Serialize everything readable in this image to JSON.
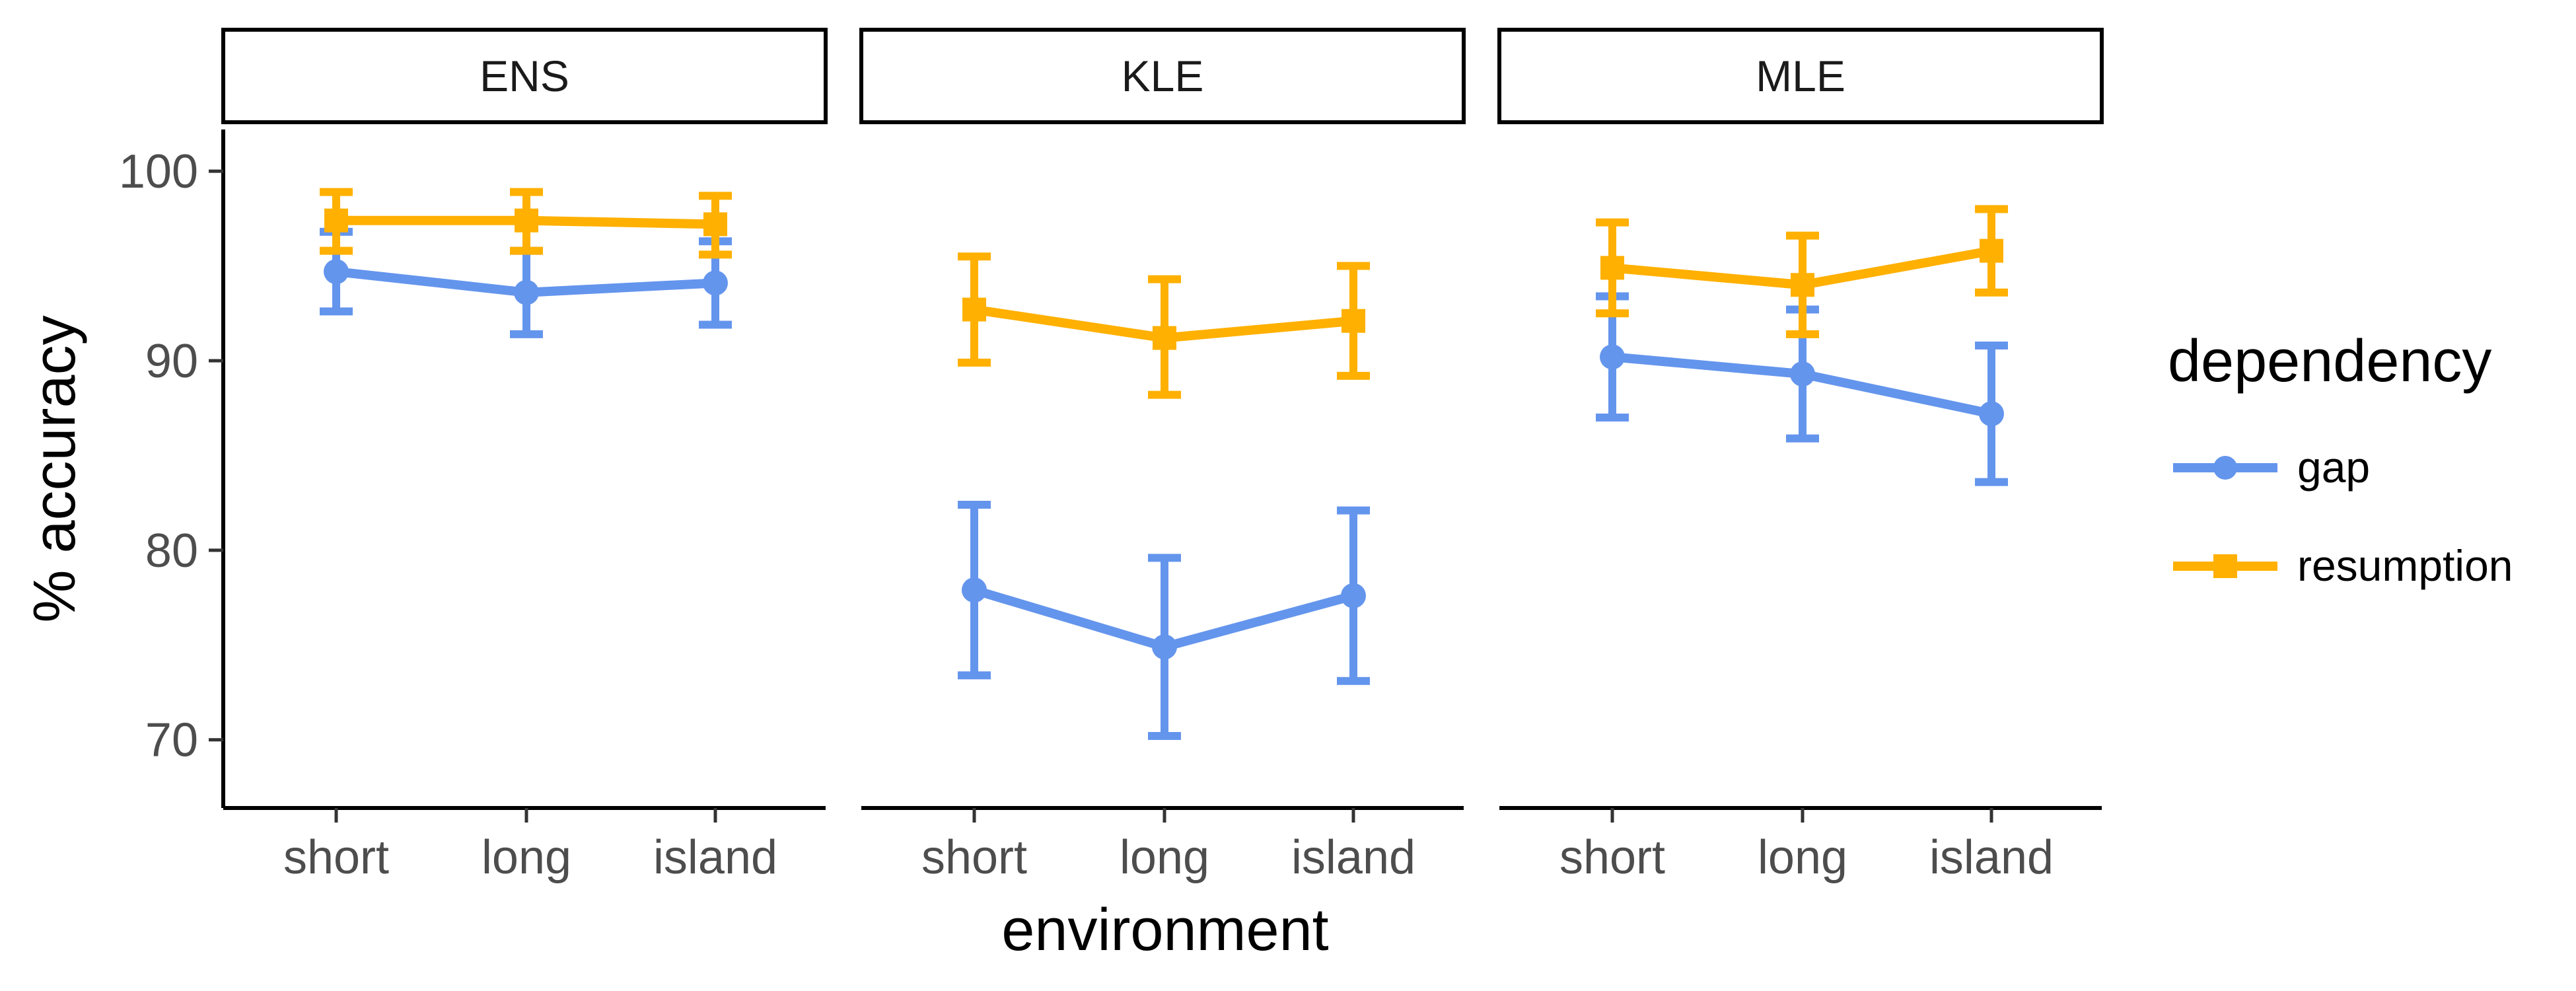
{
  "chart_data": {
    "type": "line",
    "xlabel": "environment",
    "ylabel": "% accuracy",
    "categories": [
      "short",
      "long",
      "island"
    ],
    "ylim": [
      66.4,
      102.2
    ],
    "yticks": [
      70,
      80,
      90,
      100
    ],
    "grid": false,
    "legend": {
      "title": "dependency",
      "position": "right",
      "entries": [
        "gap",
        "resumption"
      ]
    },
    "panels": [
      {
        "name": "ENS",
        "series": [
          {
            "name": "gap",
            "color": "#6495ED",
            "marker": "circle",
            "values": [
              94.7,
              93.6,
              94.1
            ],
            "lower": [
              92.6,
              91.4,
              91.9
            ],
            "upper": [
              96.8,
              95.8,
              96.3
            ]
          },
          {
            "name": "resumption",
            "color": "#FFB000",
            "marker": "square",
            "values": [
              97.4,
              97.4,
              97.2
            ],
            "lower": [
              95.8,
              95.8,
              95.6
            ],
            "upper": [
              98.9,
              98.9,
              98.7
            ]
          }
        ]
      },
      {
        "name": "KLE",
        "series": [
          {
            "name": "gap",
            "color": "#6495ED",
            "marker": "circle",
            "values": [
              77.9,
              74.9,
              77.6
            ],
            "lower": [
              73.4,
              70.2,
              73.1
            ],
            "upper": [
              82.4,
              79.6,
              82.1
            ]
          },
          {
            "name": "resumption",
            "color": "#FFB000",
            "marker": "square",
            "values": [
              92.7,
              91.2,
              92.1
            ],
            "lower": [
              89.9,
              88.2,
              89.2
            ],
            "upper": [
              95.5,
              94.3,
              95.0
            ]
          }
        ]
      },
      {
        "name": "MLE",
        "series": [
          {
            "name": "gap",
            "color": "#6495ED",
            "marker": "circle",
            "values": [
              90.2,
              89.3,
              87.2
            ],
            "lower": [
              87.0,
              85.9,
              83.6
            ],
            "upper": [
              93.4,
              92.7,
              90.8
            ]
          },
          {
            "name": "resumption",
            "color": "#FFB000",
            "marker": "square",
            "values": [
              94.9,
              94.0,
              95.8
            ],
            "lower": [
              92.5,
              91.4,
              93.6
            ],
            "upper": [
              97.3,
              96.6,
              98.0
            ]
          }
        ]
      }
    ]
  }
}
